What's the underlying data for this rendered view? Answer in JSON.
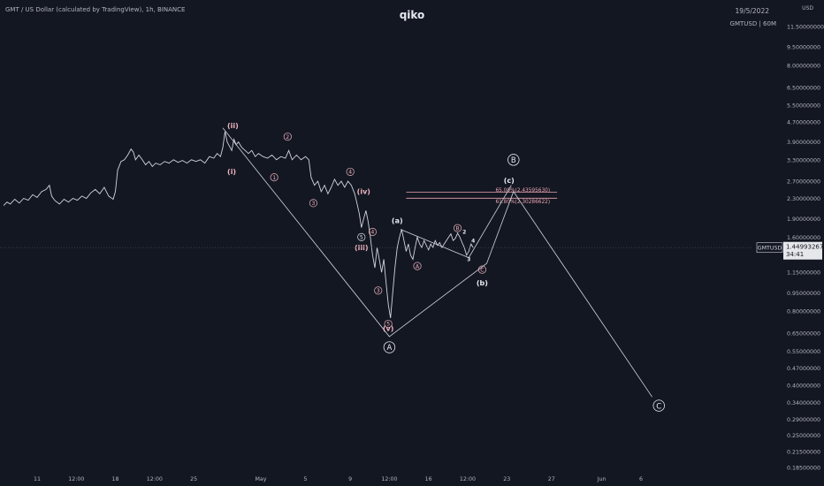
{
  "header": {
    "symbol_desc": "GMT / US Dollar (calculated by TradingView), 1h, BINANCE",
    "title": "qiko",
    "date": "19/5/2022",
    "symbol_tf": "GMTUSD | 60M",
    "axis_unit": "USD"
  },
  "price_label": {
    "symbol": "GMTUSD",
    "price": "1.44993267",
    "countdown": "34:41"
  },
  "colors": {
    "background": "#131722",
    "price_line": "#d1d4dc",
    "wave_line": "#d1d4dc",
    "wave_label": "#f0b5c0",
    "fib_line": "#e8a4b0",
    "axis_text": "#b2b5be"
  },
  "chart_data": {
    "type": "line",
    "title": "qiko",
    "y_scale": "log",
    "ylim": [
      0.17,
      11.5
    ],
    "y_ticks": [
      {
        "v": 11.5,
        "label": "11.50000000"
      },
      {
        "v": 9.5,
        "label": "9.50000000"
      },
      {
        "v": 8.0,
        "label": "8.00000000"
      },
      {
        "v": 6.5,
        "label": "6.50000000"
      },
      {
        "v": 5.5,
        "label": "5.50000000"
      },
      {
        "v": 4.7,
        "label": "4.70000000"
      },
      {
        "v": 3.9,
        "label": "3.90000000"
      },
      {
        "v": 3.3,
        "label": "3.30000000"
      },
      {
        "v": 2.7,
        "label": "2.70000000"
      },
      {
        "v": 2.3,
        "label": "2.30000000"
      },
      {
        "v": 1.9,
        "label": "1.90000000"
      },
      {
        "v": 1.6,
        "label": "1.60000000"
      },
      {
        "v": 1.15,
        "label": "1.15000000"
      },
      {
        "v": 0.95,
        "label": "0.95000000"
      },
      {
        "v": 0.8,
        "label": "0.80000000"
      },
      {
        "v": 0.65,
        "label": "0.65000000"
      },
      {
        "v": 0.55,
        "label": "0.55000000"
      },
      {
        "v": 0.47,
        "label": "0.47000000"
      },
      {
        "v": 0.4,
        "label": "0.40000000"
      },
      {
        "v": 0.34,
        "label": "0.34000000"
      },
      {
        "v": 0.29,
        "label": "0.29000000"
      },
      {
        "v": 0.25,
        "label": "0.25000000"
      },
      {
        "v": 0.215,
        "label": "0.21500000"
      },
      {
        "v": 0.185,
        "label": "0.18500000"
      }
    ],
    "x_ticks": [
      {
        "d": 11.0,
        "label": "11"
      },
      {
        "d": 14.5,
        "label": "12:00"
      },
      {
        "d": 18.0,
        "label": "18"
      },
      {
        "d": 21.5,
        "label": "12:00"
      },
      {
        "d": 25.0,
        "label": "25"
      },
      {
        "d": 31.0,
        "label": "May"
      },
      {
        "d": 35.0,
        "label": "5"
      },
      {
        "d": 39.0,
        "label": "9"
      },
      {
        "d": 42.5,
        "label": "12:00"
      },
      {
        "d": 46.0,
        "label": "16"
      },
      {
        "d": 49.5,
        "label": "12:00"
      },
      {
        "d": 53.0,
        "label": "23"
      },
      {
        "d": 57.0,
        "label": "27"
      },
      {
        "d": 61.5,
        "label": "Jun"
      },
      {
        "d": 65.0,
        "label": "6"
      }
    ],
    "x_unit_note": "days from Apr 1 2022 (31 = May 1)",
    "price_series": [
      [
        8.0,
        2.15
      ],
      [
        8.3,
        2.22
      ],
      [
        8.6,
        2.18
      ],
      [
        9.0,
        2.28
      ],
      [
        9.4,
        2.2
      ],
      [
        9.8,
        2.3
      ],
      [
        10.2,
        2.26
      ],
      [
        10.6,
        2.38
      ],
      [
        11.0,
        2.32
      ],
      [
        11.4,
        2.45
      ],
      [
        11.8,
        2.5
      ],
      [
        12.1,
        2.6
      ],
      [
        12.3,
        2.35
      ],
      [
        12.6,
        2.25
      ],
      [
        13.0,
        2.18
      ],
      [
        13.4,
        2.28
      ],
      [
        13.8,
        2.22
      ],
      [
        14.2,
        2.3
      ],
      [
        14.6,
        2.26
      ],
      [
        15.0,
        2.35
      ],
      [
        15.4,
        2.3
      ],
      [
        15.8,
        2.42
      ],
      [
        16.2,
        2.5
      ],
      [
        16.6,
        2.4
      ],
      [
        17.0,
        2.55
      ],
      [
        17.4,
        2.35
      ],
      [
        17.8,
        2.28
      ],
      [
        18.0,
        2.45
      ],
      [
        18.2,
        3.0
      ],
      [
        18.5,
        3.25
      ],
      [
        18.8,
        3.3
      ],
      [
        19.1,
        3.45
      ],
      [
        19.4,
        3.65
      ],
      [
        19.6,
        3.55
      ],
      [
        19.8,
        3.3
      ],
      [
        20.1,
        3.45
      ],
      [
        20.4,
        3.3
      ],
      [
        20.7,
        3.15
      ],
      [
        21.0,
        3.25
      ],
      [
        21.3,
        3.1
      ],
      [
        21.6,
        3.2
      ],
      [
        22.0,
        3.15
      ],
      [
        22.4,
        3.25
      ],
      [
        22.8,
        3.2
      ],
      [
        23.2,
        3.3
      ],
      [
        23.6,
        3.22
      ],
      [
        24.0,
        3.28
      ],
      [
        24.4,
        3.2
      ],
      [
        24.8,
        3.3
      ],
      [
        25.2,
        3.25
      ],
      [
        25.6,
        3.3
      ],
      [
        26.0,
        3.2
      ],
      [
        26.4,
        3.4
      ],
      [
        26.8,
        3.35
      ],
      [
        27.1,
        3.5
      ],
      [
        27.4,
        3.4
      ],
      [
        27.6,
        3.7
      ],
      [
        27.8,
        4.3
      ],
      [
        28.0,
        3.9
      ],
      [
        28.2,
        3.75
      ],
      [
        28.4,
        3.6
      ],
      [
        28.6,
        4.0
      ],
      [
        28.8,
        3.8
      ],
      [
        29.0,
        3.9
      ],
      [
        29.3,
        3.7
      ],
      [
        29.6,
        3.6
      ],
      [
        29.9,
        3.5
      ],
      [
        30.2,
        3.6
      ],
      [
        30.5,
        3.4
      ],
      [
        30.8,
        3.5
      ],
      [
        31.2,
        3.4
      ],
      [
        31.6,
        3.35
      ],
      [
        32.0,
        3.45
      ],
      [
        32.4,
        3.3
      ],
      [
        32.8,
        3.4
      ],
      [
        33.2,
        3.35
      ],
      [
        33.5,
        3.6
      ],
      [
        33.8,
        3.3
      ],
      [
        34.2,
        3.45
      ],
      [
        34.6,
        3.3
      ],
      [
        35.0,
        3.4
      ],
      [
        35.3,
        3.3
      ],
      [
        35.5,
        2.8
      ],
      [
        35.8,
        2.6
      ],
      [
        36.1,
        2.7
      ],
      [
        36.4,
        2.45
      ],
      [
        36.7,
        2.6
      ],
      [
        37.0,
        2.4
      ],
      [
        37.3,
        2.55
      ],
      [
        37.6,
        2.75
      ],
      [
        37.9,
        2.6
      ],
      [
        38.2,
        2.7
      ],
      [
        38.5,
        2.55
      ],
      [
        38.8,
        2.7
      ],
      [
        39.1,
        2.6
      ],
      [
        39.4,
        2.4
      ],
      [
        39.6,
        2.2
      ],
      [
        39.8,
        2.0
      ],
      [
        40.0,
        1.75
      ],
      [
        40.2,
        1.9
      ],
      [
        40.4,
        2.05
      ],
      [
        40.6,
        1.85
      ],
      [
        40.8,
        1.6
      ],
      [
        41.0,
        1.35
      ],
      [
        41.2,
        1.2
      ],
      [
        41.4,
        1.45
      ],
      [
        41.6,
        1.3
      ],
      [
        41.8,
        1.15
      ],
      [
        42.0,
        1.3
      ],
      [
        42.2,
        1.05
      ],
      [
        42.4,
        0.85
      ],
      [
        42.6,
        0.75
      ],
      [
        42.8,
        0.95
      ],
      [
        43.0,
        1.2
      ],
      [
        43.2,
        1.45
      ],
      [
        43.4,
        1.6
      ],
      [
        43.6,
        1.72
      ],
      [
        43.8,
        1.55
      ],
      [
        44.0,
        1.4
      ],
      [
        44.2,
        1.5
      ],
      [
        44.4,
        1.35
      ],
      [
        44.6,
        1.3
      ],
      [
        44.8,
        1.45
      ],
      [
        45.0,
        1.6
      ],
      [
        45.2,
        1.5
      ],
      [
        45.4,
        1.45
      ],
      [
        45.6,
        1.55
      ],
      [
        45.8,
        1.48
      ],
      [
        46.0,
        1.42
      ],
      [
        46.2,
        1.5
      ],
      [
        46.4,
        1.45
      ],
      [
        46.6,
        1.55
      ],
      [
        46.8,
        1.48
      ],
      [
        47.0,
        1.52
      ],
      [
        47.2,
        1.45
      ],
      [
        47.4,
        1.5
      ],
      [
        47.6,
        1.55
      ],
      [
        47.8,
        1.6
      ],
      [
        48.0,
        1.65
      ],
      [
        48.2,
        1.55
      ],
      [
        48.4,
        1.58
      ],
      [
        48.6,
        1.66
      ],
      [
        48.8,
        1.6
      ],
      [
        49.0,
        1.52
      ],
      [
        49.2,
        1.45
      ],
      [
        49.4,
        1.35
      ],
      [
        49.6,
        1.4
      ],
      [
        49.8,
        1.5
      ],
      [
        50.0,
        1.45
      ]
    ],
    "current_price": 1.44993267,
    "wave_path": [
      [
        27.6,
        4.45
      ],
      [
        42.5,
        0.63
      ],
      [
        51.2,
        1.25
      ],
      [
        53.6,
        2.45
      ],
      [
        66.0,
        0.358
      ]
    ],
    "sub_wave_path": [
      [
        43.5,
        1.72
      ],
      [
        49.6,
        1.32
      ],
      [
        53.4,
        2.6
      ]
    ],
    "fib_levels": [
      {
        "label": "65.00%(2.43595630)",
        "value": 2.4359563
      },
      {
        "label": "61.80%(2.30286622)",
        "value": 2.30286622
      }
    ],
    "fib_x_range": [
      44.0,
      57.5
    ],
    "wave_labels": [
      {
        "text": "(ii)",
        "d": 28.5,
        "v": 4.55,
        "style": "paren",
        "color": "pink"
      },
      {
        "text": "(i)",
        "d": 28.4,
        "v": 2.95,
        "style": "paren",
        "color": "pink"
      },
      {
        "text": "2",
        "d": 33.4,
        "v": 4.1,
        "style": "circle",
        "color": "pink"
      },
      {
        "text": "1",
        "d": 32.2,
        "v": 2.8,
        "style": "circle",
        "color": "pink"
      },
      {
        "text": "3",
        "d": 35.7,
        "v": 2.2,
        "style": "circle",
        "color": "pink"
      },
      {
        "text": "4",
        "d": 39.0,
        "v": 2.95,
        "style": "circle",
        "color": "pink"
      },
      {
        "text": "(iv)",
        "d": 40.2,
        "v": 2.45,
        "style": "paren",
        "color": "pink"
      },
      {
        "text": "5",
        "d": 40.0,
        "v": 1.6,
        "style": "circle",
        "color": "white"
      },
      {
        "text": "4",
        "d": 41.0,
        "v": 1.68,
        "style": "circle",
        "color": "pink"
      },
      {
        "text": "(iii)",
        "d": 40.0,
        "v": 1.45,
        "style": "paren",
        "color": "pink"
      },
      {
        "text": "3",
        "d": 41.5,
        "v": 0.97,
        "style": "circle",
        "color": "pink"
      },
      {
        "text": "5",
        "d": 42.4,
        "v": 0.71,
        "style": "circle",
        "color": "pink"
      },
      {
        "text": "(v)",
        "d": 42.4,
        "v": 0.68,
        "style": "paren",
        "color": "pink"
      },
      {
        "text": "A",
        "d": 42.5,
        "v": 0.57,
        "style": "bigcircle",
        "color": "white"
      },
      {
        "text": "(a)",
        "d": 43.2,
        "v": 1.87,
        "style": "paren",
        "color": "white"
      },
      {
        "text": "A",
        "d": 45.0,
        "v": 1.22,
        "style": "circle",
        "color": "pink"
      },
      {
        "text": "B",
        "d": 48.6,
        "v": 1.74,
        "style": "circle",
        "color": "pink"
      },
      {
        "text": "2",
        "d": 49.2,
        "v": 1.68,
        "style": "plain",
        "color": "white"
      },
      {
        "text": "4",
        "d": 50.0,
        "v": 1.55,
        "style": "plain",
        "color": "white"
      },
      {
        "text": "3",
        "d": 49.6,
        "v": 1.3,
        "style": "plain",
        "color": "white"
      },
      {
        "text": "C",
        "d": 50.8,
        "v": 1.18,
        "style": "circle",
        "color": "pink"
      },
      {
        "text": "(b)",
        "d": 50.8,
        "v": 1.04,
        "style": "paren",
        "color": "white"
      },
      {
        "text": "(c)",
        "d": 53.2,
        "v": 2.72,
        "style": "paren",
        "color": "white"
      },
      {
        "text": "B",
        "d": 53.6,
        "v": 3.3,
        "style": "bigcircle",
        "color": "white"
      },
      {
        "text": "C",
        "d": 66.6,
        "v": 0.33,
        "style": "bigcircle",
        "color": "white"
      }
    ]
  }
}
